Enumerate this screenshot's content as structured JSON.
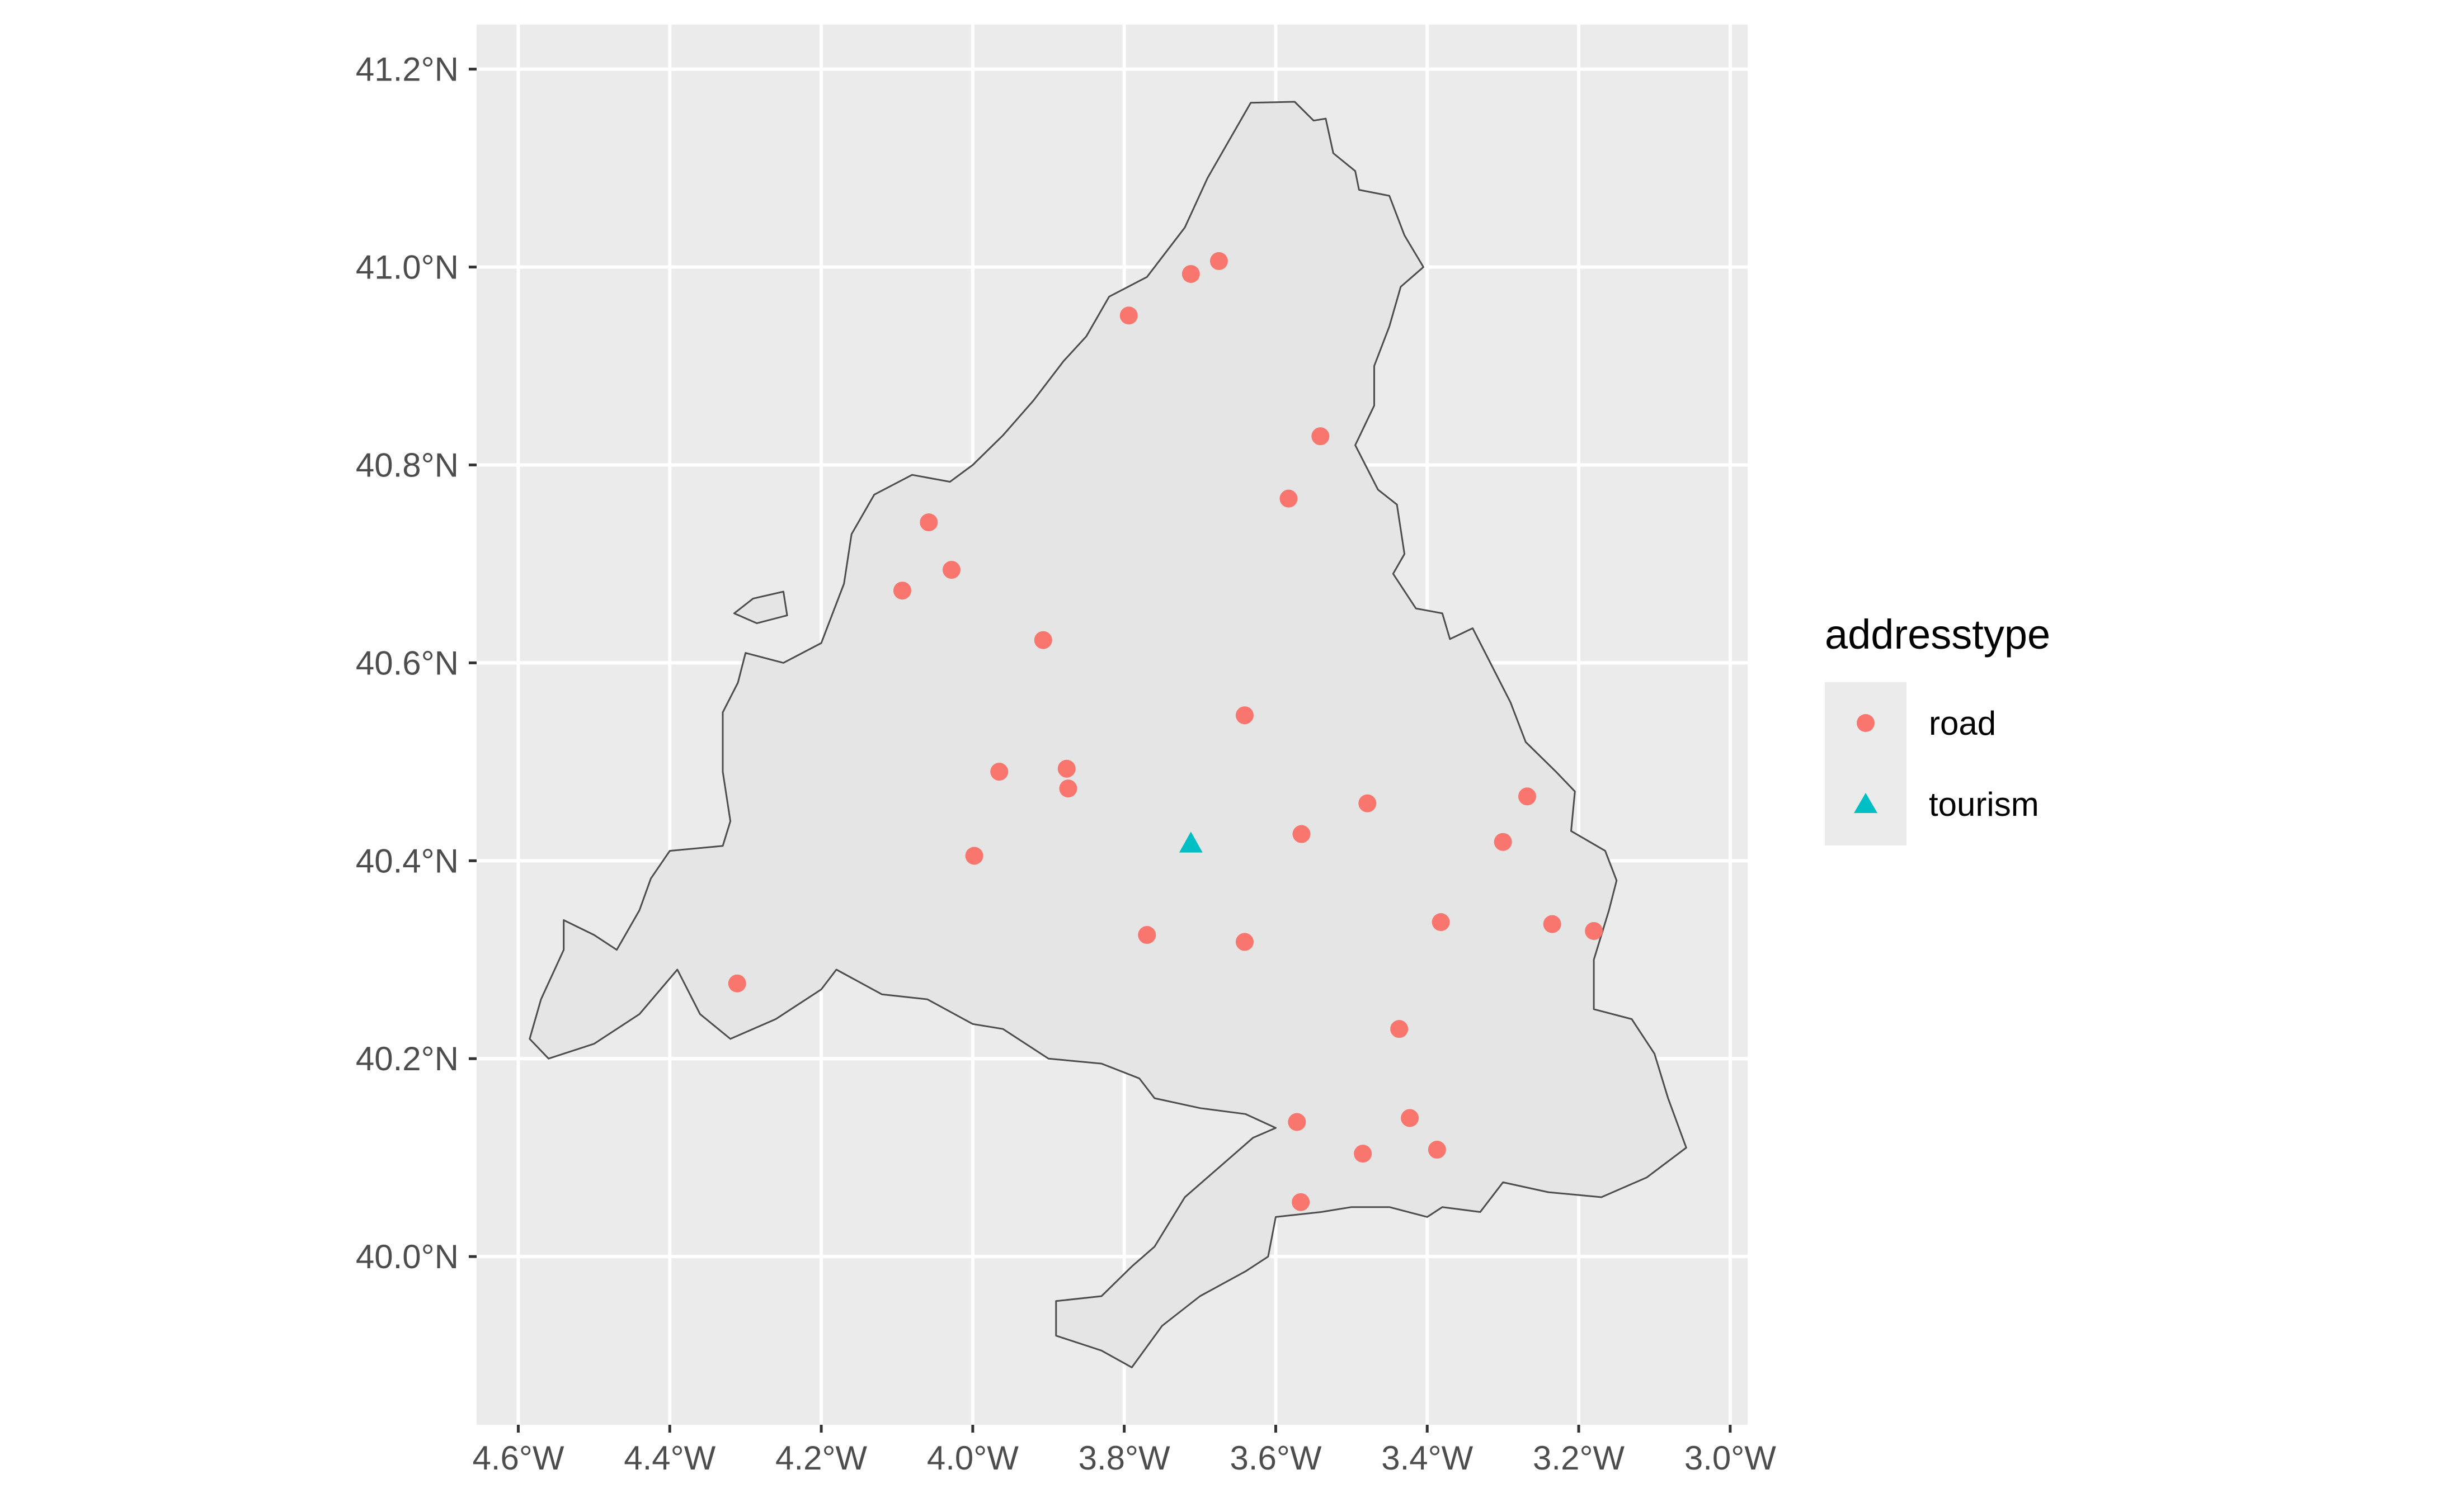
{
  "map": {
    "type": "scatter",
    "x_ticks": [
      "4.6°W",
      "4.4°W",
      "4.2°W",
      "4.0°W",
      "3.8°W",
      "3.6°W",
      "3.4°W",
      "3.2°W",
      "3.0°W"
    ],
    "y_ticks": [
      "40.0°N",
      "40.2°N",
      "40.4°N",
      "40.6°N",
      "40.8°N",
      "41.0°N",
      "41.2°N"
    ],
    "x_tick_values": [
      -4.6,
      -4.4,
      -4.2,
      -4.0,
      -3.8,
      -3.6,
      -3.4,
      -3.2,
      -3.0
    ],
    "y_tick_values": [
      40.0,
      40.2,
      40.4,
      40.6,
      40.8,
      41.0,
      41.2
    ],
    "xlim": [
      -4.655,
      -2.977
    ],
    "ylim": [
      39.83,
      41.245
    ],
    "grid": true,
    "colors": {
      "panel": "#ebebeb",
      "region_fill": "#e5e5e5",
      "region_border": "#4d4d4d",
      "gridline": "#ffffff",
      "road": "#f8766d",
      "tourism": "#00bfc4"
    },
    "legend": {
      "title": "addresstype",
      "position": "right",
      "items": [
        {
          "label": "road",
          "shape": "circle",
          "color": "#f8766d"
        },
        {
          "label": "tourism",
          "shape": "triangle",
          "color": "#00bfc4"
        }
      ]
    },
    "points": [
      {
        "lon": -3.675,
        "lat": 41.006,
        "type": "road"
      },
      {
        "lon": -3.712,
        "lat": 40.993,
        "type": "road"
      },
      {
        "lon": -3.794,
        "lat": 40.951,
        "type": "road"
      },
      {
        "lon": -3.541,
        "lat": 40.829,
        "type": "road"
      },
      {
        "lon": -3.583,
        "lat": 40.766,
        "type": "road"
      },
      {
        "lon": -4.058,
        "lat": 40.742,
        "type": "road"
      },
      {
        "lon": -4.028,
        "lat": 40.694,
        "type": "road"
      },
      {
        "lon": -4.093,
        "lat": 40.673,
        "type": "road"
      },
      {
        "lon": -3.907,
        "lat": 40.623,
        "type": "road"
      },
      {
        "lon": -3.641,
        "lat": 40.547,
        "type": "road"
      },
      {
        "lon": -3.876,
        "lat": 40.493,
        "type": "road"
      },
      {
        "lon": -3.965,
        "lat": 40.49,
        "type": "road"
      },
      {
        "lon": -3.874,
        "lat": 40.473,
        "type": "road"
      },
      {
        "lon": -3.268,
        "lat": 40.465,
        "type": "road"
      },
      {
        "lon": -3.479,
        "lat": 40.458,
        "type": "road"
      },
      {
        "lon": -3.566,
        "lat": 40.427,
        "type": "road"
      },
      {
        "lon": -3.3,
        "lat": 40.419,
        "type": "road"
      },
      {
        "lon": -3.998,
        "lat": 40.405,
        "type": "road"
      },
      {
        "lon": -3.382,
        "lat": 40.338,
        "type": "road"
      },
      {
        "lon": -3.235,
        "lat": 40.336,
        "type": "road"
      },
      {
        "lon": -3.18,
        "lat": 40.329,
        "type": "road"
      },
      {
        "lon": -3.77,
        "lat": 40.325,
        "type": "road"
      },
      {
        "lon": -3.641,
        "lat": 40.318,
        "type": "road"
      },
      {
        "lon": -4.311,
        "lat": 40.276,
        "type": "road"
      },
      {
        "lon": -3.437,
        "lat": 40.23,
        "type": "road"
      },
      {
        "lon": -3.423,
        "lat": 40.14,
        "type": "road"
      },
      {
        "lon": -3.572,
        "lat": 40.136,
        "type": "road"
      },
      {
        "lon": -3.387,
        "lat": 40.108,
        "type": "road"
      },
      {
        "lon": -3.485,
        "lat": 40.104,
        "type": "road"
      },
      {
        "lon": -3.567,
        "lat": 40.055,
        "type": "road"
      },
      {
        "lon": -3.712,
        "lat": 40.417,
        "type": "tourism"
      }
    ],
    "region_outline": [
      [
        -3.633,
        41.166
      ],
      [
        -3.575,
        41.167
      ],
      [
        -3.55,
        41.148
      ],
      [
        -3.534,
        41.15
      ],
      [
        -3.524,
        41.115
      ],
      [
        -3.495,
        41.097
      ],
      [
        -3.49,
        41.078
      ],
      [
        -3.45,
        41.072
      ],
      [
        -3.43,
        41.032
      ],
      [
        -3.405,
        41.0
      ],
      [
        -3.435,
        40.98
      ],
      [
        -3.45,
        40.94
      ],
      [
        -3.47,
        40.9
      ],
      [
        -3.47,
        40.86
      ],
      [
        -3.495,
        40.82
      ],
      [
        -3.465,
        40.775
      ],
      [
        -3.44,
        40.76
      ],
      [
        -3.43,
        40.71
      ],
      [
        -3.445,
        40.69
      ],
      [
        -3.415,
        40.655
      ],
      [
        -3.38,
        40.65
      ],
      [
        -3.37,
        40.624
      ],
      [
        -3.34,
        40.635
      ],
      [
        -3.31,
        40.59
      ],
      [
        -3.29,
        40.56
      ],
      [
        -3.27,
        40.52
      ],
      [
        -3.23,
        40.49
      ],
      [
        -3.205,
        40.47
      ],
      [
        -3.21,
        40.43
      ],
      [
        -3.165,
        40.41
      ],
      [
        -3.15,
        40.38
      ],
      [
        -3.16,
        40.35
      ],
      [
        -3.18,
        40.3
      ],
      [
        -3.18,
        40.25
      ],
      [
        -3.13,
        40.24
      ],
      [
        -3.1,
        40.205
      ],
      [
        -3.082,
        40.16
      ],
      [
        -3.058,
        40.11
      ],
      [
        -3.11,
        40.08
      ],
      [
        -3.17,
        40.06
      ],
      [
        -3.24,
        40.065
      ],
      [
        -3.3,
        40.075
      ],
      [
        -3.33,
        40.045
      ],
      [
        -3.38,
        40.05
      ],
      [
        -3.4,
        40.04
      ],
      [
        -3.45,
        40.05
      ],
      [
        -3.5,
        40.05
      ],
      [
        -3.54,
        40.045
      ],
      [
        -3.6,
        40.04
      ],
      [
        -3.61,
        40.0
      ],
      [
        -3.64,
        39.985
      ],
      [
        -3.7,
        39.96
      ],
      [
        -3.75,
        39.93
      ],
      [
        -3.79,
        39.888
      ],
      [
        -3.83,
        39.905
      ],
      [
        -3.89,
        39.92
      ],
      [
        -3.89,
        39.955
      ],
      [
        -3.83,
        39.96
      ],
      [
        -3.79,
        39.99
      ],
      [
        -3.76,
        40.01
      ],
      [
        -3.72,
        40.06
      ],
      [
        -3.66,
        40.1
      ],
      [
        -3.63,
        40.12
      ],
      [
        -3.6,
        40.13
      ],
      [
        -3.64,
        40.144
      ],
      [
        -3.7,
        40.15
      ],
      [
        -3.76,
        40.16
      ],
      [
        -3.78,
        40.18
      ],
      [
        -3.83,
        40.195
      ],
      [
        -3.9,
        40.2
      ],
      [
        -3.96,
        40.23
      ],
      [
        -4.0,
        40.235
      ],
      [
        -4.06,
        40.26
      ],
      [
        -4.12,
        40.265
      ],
      [
        -4.18,
        40.29
      ],
      [
        -4.2,
        40.27
      ],
      [
        -4.26,
        40.24
      ],
      [
        -4.32,
        40.22
      ],
      [
        -4.36,
        40.245
      ],
      [
        -4.39,
        40.29
      ],
      [
        -4.44,
        40.245
      ],
      [
        -4.5,
        40.215
      ],
      [
        -4.56,
        40.2
      ],
      [
        -4.585,
        40.22
      ],
      [
        -4.57,
        40.26
      ],
      [
        -4.54,
        40.31
      ],
      [
        -4.54,
        40.34
      ],
      [
        -4.5,
        40.325
      ],
      [
        -4.47,
        40.31
      ],
      [
        -4.44,
        40.35
      ],
      [
        -4.425,
        40.382
      ],
      [
        -4.4,
        40.41
      ],
      [
        -4.33,
        40.415
      ],
      [
        -4.32,
        40.44
      ],
      [
        -4.33,
        40.49
      ],
      [
        -4.33,
        40.55
      ],
      [
        -4.31,
        40.58
      ],
      [
        -4.3,
        40.61
      ],
      [
        -4.25,
        40.6
      ],
      [
        -4.2,
        40.62
      ],
      [
        -4.17,
        40.68
      ],
      [
        -4.16,
        40.73
      ],
      [
        -4.13,
        40.77
      ],
      [
        -4.08,
        40.79
      ],
      [
        -4.03,
        40.783
      ],
      [
        -4.0,
        40.8
      ],
      [
        -3.96,
        40.83
      ],
      [
        -3.92,
        40.865
      ],
      [
        -3.88,
        40.905
      ],
      [
        -3.85,
        40.93
      ],
      [
        -3.82,
        40.97
      ],
      [
        -3.77,
        40.99
      ],
      [
        -3.72,
        41.04
      ],
      [
        -3.69,
        41.09
      ],
      [
        -3.66,
        41.13
      ]
    ],
    "enclave_outline": [
      [
        -4.315,
        40.65
      ],
      [
        -4.29,
        40.665
      ],
      [
        -4.25,
        40.672
      ],
      [
        -4.245,
        40.648
      ],
      [
        -4.285,
        40.64
      ]
    ]
  }
}
